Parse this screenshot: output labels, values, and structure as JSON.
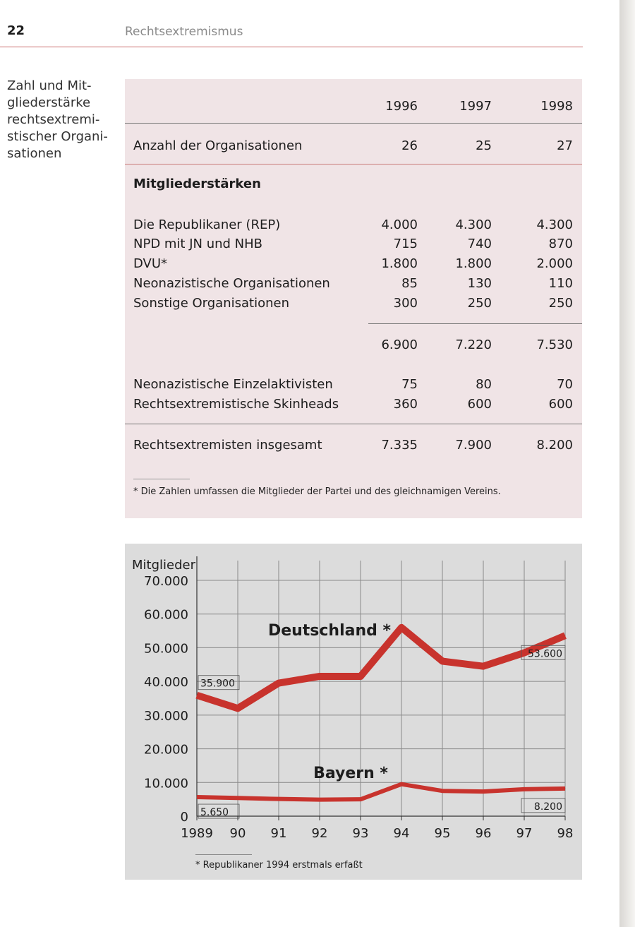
{
  "header": {
    "page_number": "22",
    "running_title": "Rechtsextremismus"
  },
  "caption": "Zahl und Mit-\ngliederstärke\nrechtsextremi-\nstischer Organi-\nsationen",
  "table": {
    "years": [
      "1996",
      "1997",
      "1998"
    ],
    "organizations": {
      "label": "Anzahl der Organisationen",
      "values": [
        "26",
        "25",
        "27"
      ]
    },
    "section_title": "Mitgliederstärken",
    "members": [
      {
        "label": "Die Republikaner (REP)",
        "values": [
          "4.000",
          "4.300",
          "4.300"
        ]
      },
      {
        "label": "NPD mit JN und NHB",
        "values": [
          "715",
          "740",
          "870"
        ]
      },
      {
        "label": "DVU*",
        "values": [
          "1.800",
          "1.800",
          "2.000"
        ]
      },
      {
        "label": "Neonazistische Organisationen",
        "values": [
          "85",
          "130",
          "110"
        ]
      },
      {
        "label": "Sonstige Organisationen",
        "values": [
          "300",
          "250",
          "250"
        ]
      }
    ],
    "subtotal": {
      "values": [
        "6.900",
        "7.220",
        "7.530"
      ]
    },
    "others": [
      {
        "label": "Neonazistische Einzelaktivisten",
        "values": [
          "75",
          "80",
          "70"
        ]
      },
      {
        "label": "Rechtsextremistische Skinheads",
        "values": [
          "360",
          "600",
          "600"
        ]
      }
    ],
    "total": {
      "label": "Rechtsextremisten insgesamt",
      "values": [
        "7.335",
        "7.900",
        "8.200"
      ]
    },
    "footnote": "* Die Zahlen umfassen die Mitglieder der Partei und des gleichnamigen Vereins."
  },
  "chart_data": {
    "type": "line",
    "ylabel": "Mitglieder",
    "ylim": [
      0,
      70000
    ],
    "y_ticks": [
      0,
      10000,
      20000,
      30000,
      40000,
      50000,
      60000,
      70000
    ],
    "y_tick_labels": [
      "0",
      "10.000",
      "20.000",
      "30.000",
      "40.000",
      "50.000",
      "60.000",
      "70.000"
    ],
    "categories": [
      "1989",
      "90",
      "91",
      "92",
      "93",
      "94",
      "95",
      "96",
      "97",
      "98"
    ],
    "grid": true,
    "series": [
      {
        "name": "Deutschland *",
        "values": [
          35900,
          32000,
          39500,
          41500,
          41500,
          56000,
          46000,
          44500,
          48500,
          53600
        ],
        "color": "#c8332d",
        "start_label": "35.900",
        "end_label": "53.600"
      },
      {
        "name": "Bayern *",
        "values": [
          5650,
          5400,
          5100,
          4900,
          5000,
          9500,
          7500,
          7300,
          8000,
          8200
        ],
        "color": "#c8332d",
        "start_label": "5.650",
        "end_label": "8.200"
      }
    ],
    "footnote": "* Republikaner 1994 erstmals erfaßt"
  }
}
